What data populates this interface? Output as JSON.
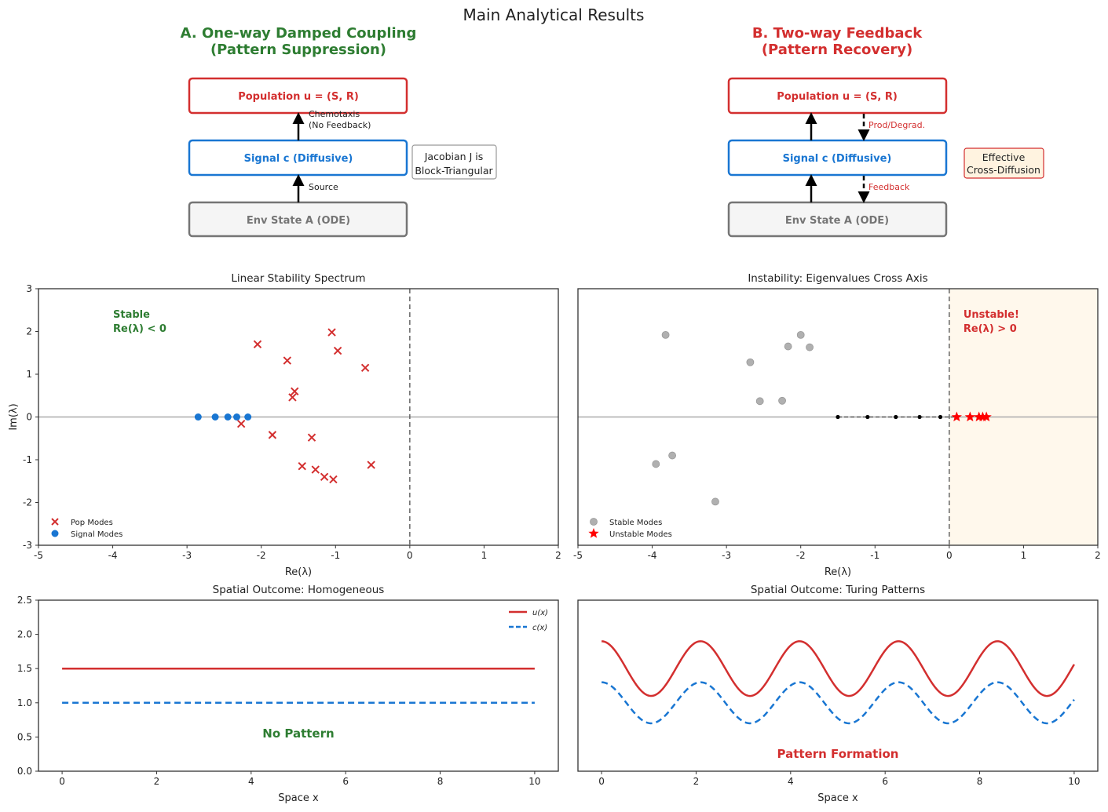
{
  "suptitle": "Main Analytical Results",
  "colors": {
    "red": "#d32f2f",
    "blue": "#1976d2",
    "green": "#2e7d32",
    "gray": "#757575",
    "grayFill": "#f5f5f5",
    "unstableBg": "#fff8ec",
    "effectiveBg": "#fff3e0",
    "stableGray": "#b0b0b0"
  },
  "panel_a": {
    "title_line1": "A. One-way Damped Coupling",
    "title_line2": "(Pattern Suppression)",
    "box_population": "Population u = (S, R)",
    "box_signal": "Signal c (Diffusive)",
    "box_env": "Env State A (ODE)",
    "arrow_top_label_line1": "Chemotaxis",
    "arrow_top_label_line2": "(No Feedback)",
    "arrow_bottom_label": "Source",
    "note_line1": "Jacobian J is",
    "note_line2": "Block-Triangular"
  },
  "panel_b": {
    "title_line1": "B. Two-way Feedback",
    "title_line2": "(Pattern Recovery)",
    "box_population": "Population u = (S, R)",
    "box_signal": "Signal c (Diffusive)",
    "box_env": "Env State A (ODE)",
    "arrow_top_label": "Prod/Degrad.",
    "arrow_bottom_label": "Feedback",
    "note_line1": "Effective",
    "note_line2": "Cross-Diffusion"
  },
  "chart_data": [
    {
      "type": "scatter",
      "title": "Linear Stability Spectrum",
      "xlabel": "Re(λ)",
      "ylabel": "Im(λ)",
      "xlim": [
        -5,
        2
      ],
      "ylim": [
        -3,
        3
      ],
      "xticks": [
        -5,
        -4,
        -3,
        -2,
        -1,
        0,
        1,
        2
      ],
      "yticks": [
        -3,
        -2,
        -1,
        0,
        1,
        2,
        3
      ],
      "annotation_line1": "Stable",
      "annotation_line2": "Re(λ) < 0",
      "legend_position": "lower-left",
      "series": [
        {
          "name": "Pop Modes",
          "marker": "x",
          "points": [
            [
              -2.05,
              1.7
            ],
            [
              -1.65,
              1.32
            ],
            [
              -1.05,
              1.98
            ],
            [
              -0.97,
              1.55
            ],
            [
              -0.6,
              1.15
            ],
            [
              -1.55,
              0.6
            ],
            [
              -1.58,
              0.46
            ],
            [
              -2.27,
              -0.16
            ],
            [
              -1.85,
              -0.42
            ],
            [
              -1.32,
              -0.48
            ],
            [
              -1.45,
              -1.15
            ],
            [
              -1.27,
              -1.23
            ],
            [
              -1.15,
              -1.4
            ],
            [
              -1.03,
              -1.46
            ],
            [
              -0.52,
              -1.12
            ]
          ]
        },
        {
          "name": "Signal Modes",
          "marker": "circle",
          "points": [
            [
              -2.85,
              0
            ],
            [
              -2.62,
              0
            ],
            [
              -2.45,
              0
            ],
            [
              -2.33,
              0
            ],
            [
              -2.18,
              0
            ]
          ]
        }
      ]
    },
    {
      "type": "scatter",
      "title": "Instability: Eigenvalues Cross Axis",
      "xlabel": "Re(λ)",
      "ylabel": "",
      "xlim": [
        -5,
        2
      ],
      "ylim": [
        -3,
        3
      ],
      "xticks": [
        -5,
        -4,
        -3,
        -2,
        -1,
        0,
        1,
        2
      ],
      "annotation_line1": "Unstable!",
      "annotation_line2": "Re(λ) > 0",
      "legend_position": "lower-left",
      "series": [
        {
          "name": "Stable Modes",
          "marker": "circle",
          "points": [
            [
              -3.82,
              1.92
            ],
            [
              -2.68,
              1.28
            ],
            [
              -2.17,
              1.65
            ],
            [
              -2.0,
              1.92
            ],
            [
              -1.88,
              1.63
            ],
            [
              -2.55,
              0.37
            ],
            [
              -2.25,
              0.38
            ],
            [
              -3.73,
              -0.9
            ],
            [
              -3.95,
              -1.1
            ],
            [
              -3.15,
              -1.98
            ]
          ]
        },
        {
          "name": "Unstable Modes",
          "marker": "star",
          "points": [
            [
              0.1,
              0
            ],
            [
              0.28,
              0
            ],
            [
              0.4,
              0
            ],
            [
              0.45,
              0
            ],
            [
              0.5,
              0
            ]
          ]
        },
        {
          "name": "",
          "marker": "dot",
          "points": [
            [
              -1.5,
              0
            ],
            [
              -1.1,
              0
            ],
            [
              -0.72,
              0
            ],
            [
              -0.4,
              0
            ],
            [
              -0.12,
              0
            ]
          ]
        }
      ]
    },
    {
      "type": "line",
      "title": "Spatial Outcome: Homogeneous",
      "xlabel": "Space x",
      "xlim": [
        -0.5,
        10.5
      ],
      "ylim": [
        0,
        2.5
      ],
      "xticks": [
        0,
        2,
        4,
        6,
        8,
        10
      ],
      "yticks": [
        0.0,
        0.5,
        1.0,
        1.5,
        2.0,
        2.5
      ],
      "annotation": "No Pattern",
      "legend_position": "top-right",
      "series": [
        {
          "name": "u(x)",
          "style": "solid",
          "function": "constant",
          "value": 1.5
        },
        {
          "name": "c(x)",
          "style": "dashed",
          "function": "constant",
          "value": 1.0
        }
      ]
    },
    {
      "type": "line",
      "title": "Spatial Outcome: Turing Patterns",
      "xlabel": "Space x",
      "xlim": [
        -0.5,
        10.5
      ],
      "ylim": [
        0,
        2.5
      ],
      "xticks": [
        0,
        2,
        4,
        6,
        8,
        10
      ],
      "annotation": "Pattern Formation",
      "series": [
        {
          "name": "u(x)",
          "style": "solid",
          "function": "cosine",
          "mean": 1.5,
          "amplitude": 0.4,
          "wavenumber": 3.0
        },
        {
          "name": "c(x)",
          "style": "dashed",
          "function": "cosine",
          "mean": 1.0,
          "amplitude": 0.3,
          "wavenumber": 3.0
        }
      ]
    }
  ]
}
